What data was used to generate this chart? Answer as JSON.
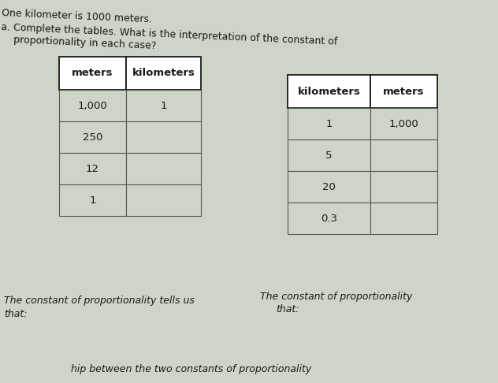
{
  "bg_color": "#cdd4c8",
  "title_line1": "One kilometer is 1000 meters.",
  "title_line2": "a. Complete the tables. What is the interpretation of the constant of",
  "title_line3": "   proportionality in each case?",
  "table1": {
    "headers": [
      "meters",
      "kilometers"
    ],
    "rows": [
      [
        "1,000",
        "1"
      ],
      [
        "250",
        ""
      ],
      [
        "12",
        ""
      ],
      [
        "1",
        ""
      ]
    ]
  },
  "table2": {
    "headers": [
      "kilometers",
      "meters"
    ],
    "rows": [
      [
        "1",
        "1,000"
      ],
      [
        "5",
        ""
      ],
      [
        "20",
        ""
      ],
      [
        "0.3",
        ""
      ]
    ]
  },
  "bottom_text_left1": "The constant of proportionality tells us",
  "bottom_text_left2": "that:",
  "bottom_text_right1": "The constant of proportionality",
  "bottom_text_right2": "that:",
  "bottom_text_bottom": "hip between the two constants of proportionality"
}
